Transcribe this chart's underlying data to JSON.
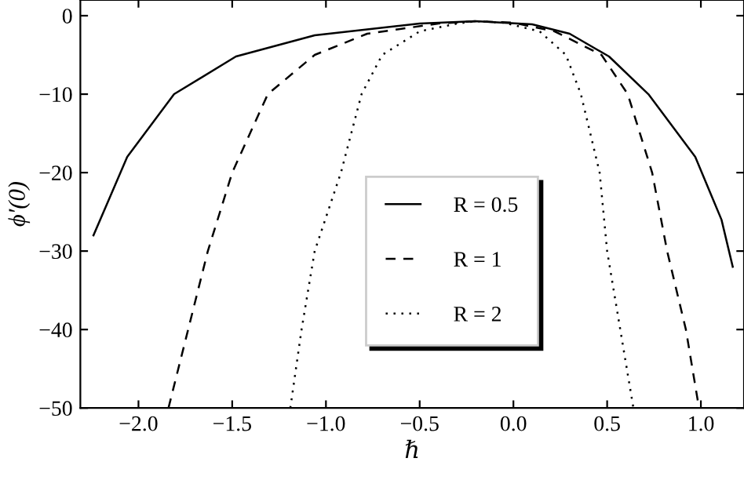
{
  "chart_data": {
    "type": "line",
    "xlabel": "ℏ",
    "ylabel": "ϕ′(0)",
    "xlim": [
      -2.31,
      1.23
    ],
    "ylim": [
      -50,
      2
    ],
    "xticks": [
      {
        "value": -2.0,
        "label": "−2.0"
      },
      {
        "value": -1.5,
        "label": "−1.5"
      },
      {
        "value": -1.0,
        "label": "−1.0"
      },
      {
        "value": -0.5,
        "label": "−0.5"
      },
      {
        "value": 0.0,
        "label": "0.0"
      },
      {
        "value": 0.5,
        "label": "0.5"
      },
      {
        "value": 1.0,
        "label": "1.0"
      }
    ],
    "yticks": [
      {
        "value": 0,
        "label": "0"
      },
      {
        "value": -10,
        "label": "−10"
      },
      {
        "value": -20,
        "label": "−20"
      },
      {
        "value": -30,
        "label": "−30"
      },
      {
        "value": -40,
        "label": "−40"
      },
      {
        "value": -50,
        "label": "−50"
      }
    ],
    "grid": false,
    "legend": "center",
    "marker": "none",
    "series": [
      {
        "name": "R = 0.5",
        "color": "#000000",
        "line_style": "solid",
        "x": [
          -2.24,
          -2.06,
          -1.81,
          -1.48,
          -1.06,
          -0.5,
          -0.2,
          0.1,
          0.3,
          0.51,
          0.72,
          0.97,
          1.11,
          1.17
        ],
        "values": [
          -28,
          -18,
          -10,
          -5.2,
          -2.5,
          -1.0,
          -0.7,
          -1.1,
          -2.3,
          -5.2,
          -10,
          -18,
          -26,
          -32
        ]
      },
      {
        "name": "R = 1",
        "color": "#000000",
        "line_style": "dashed",
        "x": [
          -1.84,
          -1.63,
          -1.5,
          -1.31,
          -1.06,
          -0.78,
          -0.4,
          -0.2,
          0.0,
          0.22,
          0.47,
          0.61,
          0.74,
          0.82,
          0.92,
          0.99
        ],
        "values": [
          -50,
          -30,
          -20,
          -10,
          -5,
          -2.3,
          -1.0,
          -0.7,
          -0.9,
          -2,
          -5,
          -10,
          -20,
          -30,
          -40,
          -50
        ]
      },
      {
        "name": "R = 2",
        "color": "#000000",
        "line_style": "dotted",
        "x": [
          -1.19,
          -1.13,
          -1.06,
          -0.92,
          -0.81,
          -0.7,
          -0.5,
          -0.3,
          -0.2,
          -0.05,
          0.14,
          0.28,
          0.36,
          0.46,
          0.5,
          0.57,
          0.64
        ],
        "values": [
          -50,
          -40,
          -30,
          -20,
          -10,
          -5,
          -2,
          -1,
          -0.7,
          -0.9,
          -2,
          -5,
          -10,
          -20,
          -30,
          -40,
          -50
        ]
      }
    ]
  }
}
